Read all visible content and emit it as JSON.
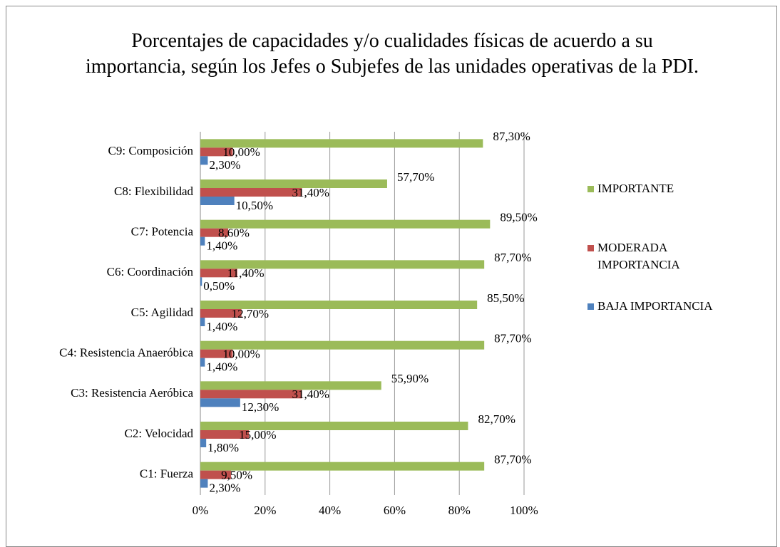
{
  "chart_data": {
    "type": "bar",
    "orientation": "horizontal",
    "title": "Porcentajes de capacidades y/o cualidades físicas de acuerdo a su importancia, según los Jefes o Subjefes de las unidades operativas de la PDI.",
    "categories": [
      "C1:  Fuerza",
      "C2:  Velocidad",
      "C3: Resistencia Aeróbica",
      "C4: Resistencia Anaeróbica",
      "C5: Agilidad",
      "C6: Coordinación",
      "C7:   Potencia",
      "C8: Flexibilidad",
      "C9: Composición"
    ],
    "series": [
      {
        "name": "IMPORTANTE",
        "color": "#9bbb59",
        "values": [
          87.7,
          82.7,
          55.9,
          87.7,
          85.5,
          87.7,
          89.5,
          57.7,
          87.3
        ],
        "value_labels": [
          "87,70%",
          "82,70%",
          "55,90%",
          "87,70%",
          "85,50%",
          "87,70%",
          "89,50%",
          "57,70%",
          "87,30%"
        ]
      },
      {
        "name": "MODERADA IMPORTANCIA",
        "color": "#c0504d",
        "values": [
          9.5,
          15.0,
          31.4,
          10.0,
          12.7,
          11.4,
          8.6,
          31.4,
          10.0
        ],
        "value_labels": [
          "9,50%",
          "15,00%",
          "31,40%",
          "10,00%",
          "12,70%",
          "11,40%",
          "8,60%",
          "31,40%",
          "10,00%"
        ]
      },
      {
        "name": "BAJA IMPORTANCIA",
        "color": "#4f81bd",
        "values": [
          2.3,
          1.8,
          12.3,
          1.4,
          1.4,
          0.5,
          1.4,
          10.5,
          2.3
        ],
        "value_labels": [
          "2,30%",
          "1,80%",
          "12,30%",
          "1,40%",
          "1,40%",
          "0,50%",
          "1,40%",
          "10,50%",
          "2,30%"
        ]
      }
    ],
    "xlim": [
      0,
      100
    ],
    "xticks": [
      {
        "value": 0,
        "label": "0%"
      },
      {
        "value": 20,
        "label": "20%"
      },
      {
        "value": 40,
        "label": "40%"
      },
      {
        "value": 60,
        "label": "60%"
      },
      {
        "value": 80,
        "label": "80%"
      },
      {
        "value": 100,
        "label": "100%"
      }
    ],
    "grid": true,
    "legend": "right"
  }
}
